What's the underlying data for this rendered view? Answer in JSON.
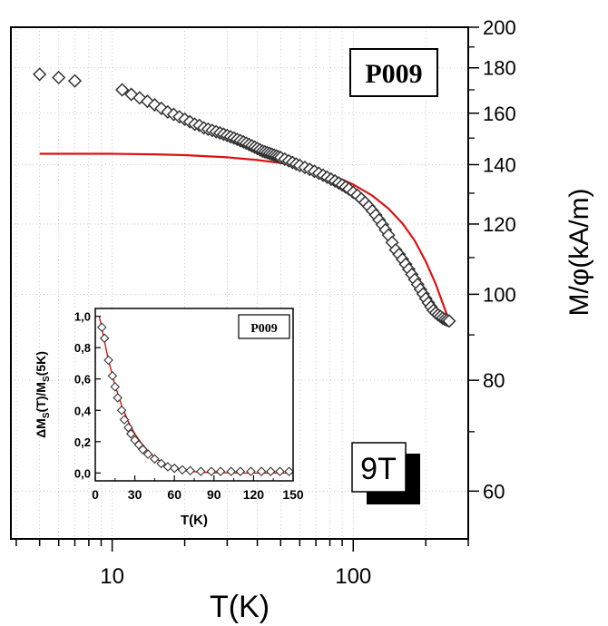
{
  "chart_data": [
    {
      "type": "scatter",
      "title": "",
      "xlabel": "T(K)",
      "ylabel": "M/φ(kA/m)",
      "xscale": "log",
      "yscale": "log",
      "xlim": [
        3.8,
        300
      ],
      "ylim": [
        53,
        200
      ],
      "x_ticks": [
        10,
        100
      ],
      "x_tick_labels": [
        "10",
        "100"
      ],
      "y_ticks": [
        60,
        80,
        100,
        120,
        140,
        160,
        180,
        200
      ],
      "y_tick_labels": [
        "60",
        "80",
        "100",
        "120",
        "140",
        "160",
        "180",
        "200"
      ],
      "y_axis_position": "right",
      "grid": true,
      "legend": "none",
      "annotations": [
        "P009",
        "9T"
      ],
      "series": [
        {
          "kind": "markers",
          "marker": "diamond",
          "color": "#333333",
          "x": [
            5,
            6,
            7,
            11,
            12,
            13,
            14,
            15,
            16,
            17,
            18,
            19,
            20,
            21,
            22,
            23,
            24,
            25,
            26,
            27,
            28,
            29,
            30,
            31,
            32,
            33,
            34,
            35,
            36,
            37,
            38,
            39,
            40,
            41,
            42,
            43,
            44,
            45,
            46,
            47,
            48,
            49,
            50,
            52,
            54,
            56,
            58,
            60,
            63,
            66,
            69,
            72,
            75,
            78,
            81,
            84,
            87,
            90,
            93,
            96,
            100,
            104,
            108,
            112,
            116,
            120,
            124,
            128,
            132,
            136,
            140,
            145,
            150,
            155,
            160,
            165,
            170,
            175,
            180,
            185,
            190,
            195,
            200,
            205,
            210,
            215,
            220,
            225,
            230,
            235,
            240,
            245,
            250
          ],
          "y": [
            177,
            175.5,
            174,
            170,
            168,
            166.5,
            165,
            163.5,
            162,
            160.5,
            159.5,
            158.5,
            157.5,
            156.5,
            155.5,
            155,
            154,
            153.5,
            153,
            152.5,
            152,
            151.5,
            151,
            150.5,
            150,
            149.5,
            149,
            148.5,
            148,
            147.5,
            147,
            146.5,
            146,
            145.5,
            145,
            144.7,
            144.4,
            144.1,
            143.8,
            143.5,
            143.2,
            142.9,
            142.6,
            142,
            141.4,
            140.8,
            140.2,
            139.7,
            139,
            138.3,
            137.6,
            136.9,
            136.2,
            135.5,
            134.8,
            134.2,
            133.5,
            132.8,
            132.1,
            131.4,
            130.3,
            129.3,
            128.1,
            126.9,
            125.6,
            124.2,
            122.8,
            121.3,
            119.8,
            118.2,
            116.6,
            114.4,
            112.2,
            110.9,
            109.5,
            108.1,
            106.7,
            105.3,
            103.9,
            102.6,
            101.3,
            100.1,
            98.9,
            97.8,
            96.8,
            95.9,
            95.3,
            94.8,
            94.4,
            94,
            93.7,
            93.5,
            93.3
          ]
        },
        {
          "kind": "line",
          "color": "#dd1111",
          "x": [
            5,
            10,
            15,
            20,
            30,
            40,
            50,
            60,
            70,
            80,
            90,
            100,
            120,
            140,
            160,
            180,
            200,
            220,
            250
          ],
          "y": [
            144,
            144,
            143.8,
            143.5,
            142.7,
            141.7,
            140.6,
            139.3,
            137.9,
            136.3,
            134.7,
            133,
            129.2,
            124.9,
            120.2,
            114.9,
            108.9,
            102.7,
            93.3
          ]
        }
      ]
    },
    {
      "type": "scatter",
      "title": "",
      "xlabel": "T(K)",
      "ylabel": "ΔM_S(T)/M_S(5K)",
      "xlim": [
        0,
        150
      ],
      "ylim": [
        -0.05,
        1.05
      ],
      "x_ticks": [
        0,
        30,
        60,
        90,
        120,
        150
      ],
      "x_tick_labels": [
        "0",
        "30",
        "60",
        "90",
        "120",
        "150"
      ],
      "y_ticks": [
        0,
        0.2,
        0.4,
        0.6,
        0.8,
        1.0
      ],
      "y_tick_labels": [
        "0,0",
        "0,2",
        "0,4",
        "0,6",
        "0,8",
        "1,0"
      ],
      "grid": false,
      "legend": "none",
      "annotations": [
        "P009"
      ],
      "series": [
        {
          "kind": "markers",
          "marker": "diamond",
          "color": "#333333",
          "x": [
            5,
            7,
            10,
            13,
            15,
            17,
            20,
            22,
            25,
            27,
            30,
            33,
            36,
            40,
            45,
            50,
            55,
            60,
            66,
            72,
            80,
            88,
            95,
            103,
            110,
            118,
            126,
            133,
            140,
            147
          ],
          "y": [
            0.93,
            0.86,
            0.72,
            0.62,
            0.55,
            0.48,
            0.4,
            0.34,
            0.29,
            0.25,
            0.21,
            0.18,
            0.15,
            0.12,
            0.09,
            0.06,
            0.04,
            0.03,
            0.02,
            0.015,
            0.01,
            0.01,
            0.01,
            0.01,
            0.01,
            0.01,
            0.01,
            0.01,
            0.01,
            0.01
          ]
        },
        {
          "kind": "line",
          "color": "#dd1111",
          "x": [
            3,
            5,
            10,
            15,
            20,
            25,
            30,
            35,
            40,
            45,
            50,
            55,
            60,
            65,
            70,
            80,
            90,
            100,
            110,
            120,
            130,
            140,
            150
          ],
          "y": [
            1.0,
            0.92,
            0.72,
            0.56,
            0.43,
            0.33,
            0.25,
            0.19,
            0.14,
            0.1,
            0.07,
            0.05,
            0.03,
            0.02,
            0.012,
            0.005,
            0.002,
            0.001,
            0.0,
            0.0,
            0.0,
            0.0,
            0.0
          ]
        }
      ]
    }
  ]
}
